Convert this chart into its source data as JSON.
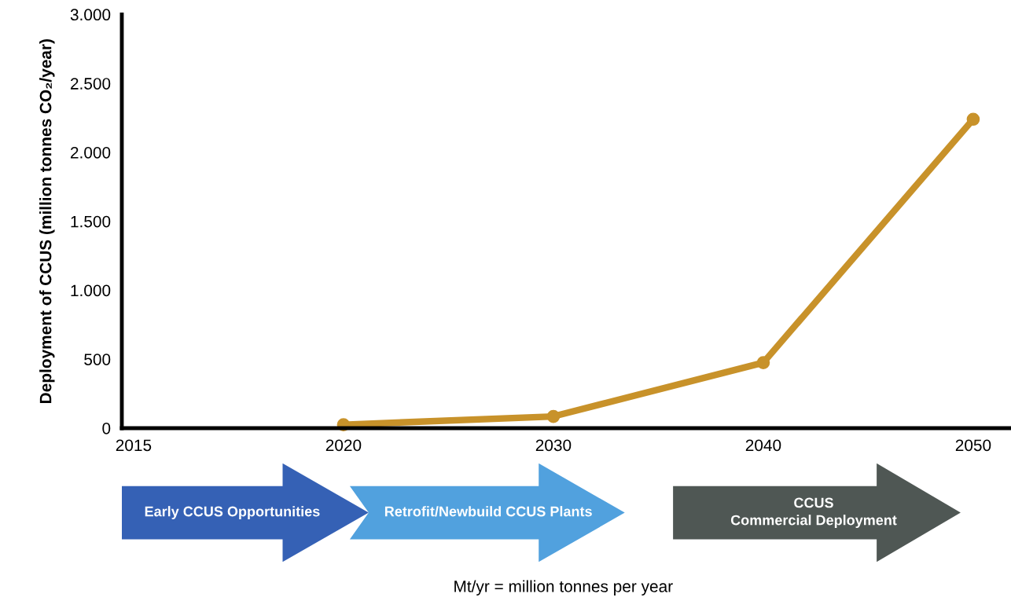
{
  "chart_data": {
    "type": "line",
    "ylabel": "Deployment of CCUS (million tonnes CO₂/year)",
    "categories": [
      "2015",
      "2020",
      "2030",
      "2040",
      "2050"
    ],
    "series": [
      {
        "color": "#c8922a",
        "values": [
          null,
          25,
          85,
          475,
          2240
        ]
      }
    ],
    "ylim": [
      0,
      3000
    ],
    "yticks": [
      0,
      500,
      {
        "value": 1000,
        "label": "1.000"
      },
      {
        "value": 1500,
        "label": "1.500"
      },
      {
        "value": 2000,
        "label": "2.000"
      },
      {
        "value": 2500,
        "label": "2.500"
      },
      {
        "value": 3000,
        "label": "3.000"
      }
    ],
    "marker": "circle",
    "line_style": "solid",
    "grid": false,
    "legend": false,
    "annotations": [
      "Early CCUS Opportunities",
      "Retrofit/Newbuild CCUS Plants",
      "CCUS\nCommercial Deployment",
      "Mt/yr = million tonnes per year"
    ]
  }
}
